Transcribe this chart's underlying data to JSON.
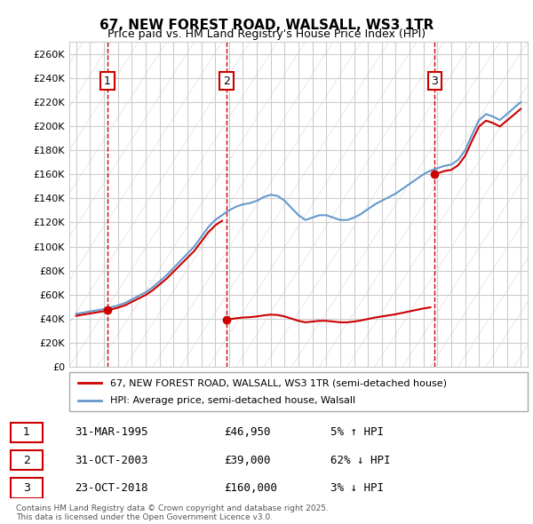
{
  "title1": "67, NEW FOREST ROAD, WALSALL, WS3 1TR",
  "title2": "Price paid vs. HM Land Registry's House Price Index (HPI)",
  "ylabel_ticks": [
    "£0",
    "£20K",
    "£40K",
    "£60K",
    "£80K",
    "£100K",
    "£120K",
    "£140K",
    "£160K",
    "£180K",
    "£200K",
    "£220K",
    "£240K",
    "£260K"
  ],
  "ytick_values": [
    0,
    20000,
    40000,
    60000,
    80000,
    100000,
    120000,
    140000,
    160000,
    180000,
    200000,
    220000,
    240000,
    260000
  ],
  "ylim": [
    0,
    270000
  ],
  "xlim_start": 1992.5,
  "xlim_end": 2025.5,
  "xticks": [
    1993,
    1994,
    1995,
    1996,
    1997,
    1998,
    1999,
    2000,
    2001,
    2002,
    2003,
    2004,
    2005,
    2006,
    2007,
    2008,
    2009,
    2010,
    2011,
    2012,
    2013,
    2014,
    2015,
    2016,
    2017,
    2018,
    2019,
    2020,
    2021,
    2022,
    2023,
    2024,
    2025
  ],
  "sale_dates": [
    1995.25,
    2003.83,
    2018.81
  ],
  "sale_prices": [
    46950,
    39000,
    160000
  ],
  "sale_labels": [
    "1",
    "2",
    "3"
  ],
  "legend_line1": "67, NEW FOREST ROAD, WALSALL, WS3 1TR (semi-detached house)",
  "legend_line2": "HPI: Average price, semi-detached house, Walsall",
  "table_data": [
    [
      "1",
      "31-MAR-1995",
      "£46,950",
      "5% ↑ HPI"
    ],
    [
      "2",
      "31-OCT-2003",
      "£39,000",
      "62% ↓ HPI"
    ],
    [
      "3",
      "23-OCT-2018",
      "£160,000",
      "3% ↓ HPI"
    ]
  ],
  "footnote": "Contains HM Land Registry data © Crown copyright and database right 2025.\nThis data is licensed under the Open Government Licence v3.0.",
  "hpi_color": "#6699cc",
  "sale_color": "#cc0000",
  "bg_color": "#ffffff",
  "grid_color": "#dddddd",
  "hatch_color": "#cccccc"
}
